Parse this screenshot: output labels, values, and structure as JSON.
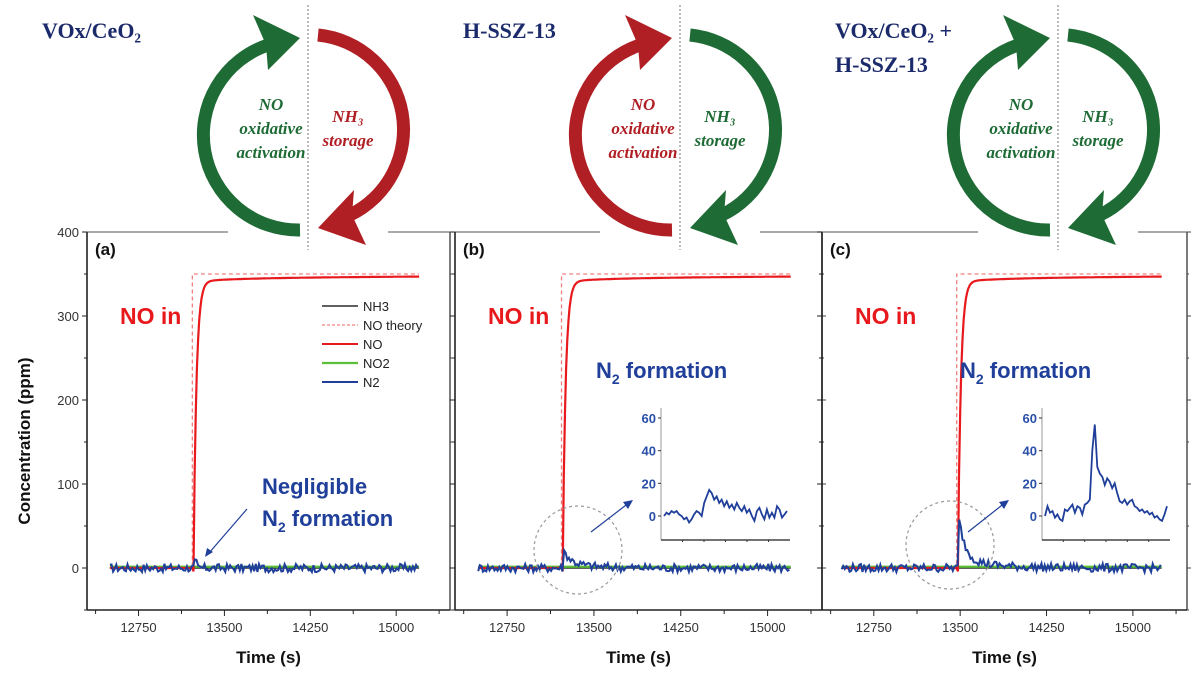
{
  "colors": {
    "green": "#1e6b35",
    "red": "#b01f24",
    "navy": "#1b2a6b",
    "no_line": "#e8191c",
    "no_theory": "#f08080",
    "nh3": "#000000",
    "no2": "#5bbf3a",
    "n2": "#1f3f9a"
  },
  "chart_data": [
    {
      "panel": "a",
      "type": "line",
      "catalyst": "VOx/CeO2",
      "catalyst_lines": [
        "VOx/CeO₂"
      ],
      "cycle": {
        "left_label": [
          "NO",
          "oxidative",
          "activation"
        ],
        "right_label": [
          "NH₃",
          "storage"
        ],
        "left_color": "green",
        "right_color": "red"
      },
      "panel_label": "(a)",
      "annotation_no": "NO in",
      "annotation_n2": [
        "Negligible",
        "N₂ formation"
      ],
      "xlabel": "Time (s)",
      "ylabel": "Concentration (ppm)",
      "xlim": [
        12300,
        15470
      ],
      "ylim": [
        -50,
        400
      ],
      "xticks": [
        12750,
        13500,
        14250,
        15000
      ],
      "yticks": [
        0,
        100,
        200,
        300,
        400
      ],
      "legend": [
        "NH3",
        "NO  theory",
        "NO",
        "NO2",
        "N2"
      ],
      "legend_placement": "upper-right",
      "step_time": 13230,
      "x_start": 12500,
      "x_end": 15200,
      "no_plateau": 345,
      "no_theory": 350,
      "n2_peak": 6,
      "inset": null
    },
    {
      "panel": "b",
      "type": "line",
      "catalyst": "H-SSZ-13",
      "catalyst_lines": [
        "H-SSZ-13"
      ],
      "cycle": {
        "left_label": [
          "NO",
          "oxidative",
          "activation"
        ],
        "right_label": [
          "NH₃",
          "storage"
        ],
        "left_color": "red",
        "right_color": "green"
      },
      "panel_label": "(b)",
      "annotation_no": "NO in",
      "annotation_n2": [
        "N₂ formation"
      ],
      "xlabel": "Time (s)",
      "xlim": [
        12300,
        15470
      ],
      "ylim": [
        -50,
        400
      ],
      "xticks": [
        12750,
        13500,
        14250,
        15000
      ],
      "yticks": [
        0,
        100,
        200,
        300,
        400
      ],
      "step_time": 13230,
      "x_start": 12500,
      "x_end": 15200,
      "no_plateau": 345,
      "no_theory": 350,
      "n2_peak": 16,
      "inset": {
        "ylim": [
          -10,
          65
        ],
        "yticks": [
          0,
          20,
          40,
          60
        ],
        "values": [
          0,
          2,
          1,
          3,
          2,
          3,
          1,
          0,
          -2,
          -1,
          -4,
          -2,
          1,
          3,
          2,
          0,
          8,
          12,
          16,
          14,
          10,
          12,
          8,
          10,
          6,
          9,
          5,
          7,
          4,
          8,
          5,
          3,
          6,
          2,
          4,
          0,
          -3,
          3,
          5,
          1,
          -2,
          4,
          -1,
          2,
          -1,
          6,
          4,
          -1,
          1,
          3
        ]
      }
    },
    {
      "panel": "c",
      "type": "line",
      "catalyst": "VOx/CeO2 + H-SSZ-13",
      "catalyst_lines": [
        "VOx/CeO₂ +",
        "H-SSZ-13"
      ],
      "cycle": {
        "left_label": [
          "NO",
          "oxidative",
          "activation"
        ],
        "right_label": [
          "NH₃",
          "storage"
        ],
        "left_color": "green",
        "right_color": "green"
      },
      "panel_label": "(c)",
      "annotation_no": "NO in",
      "annotation_n2": [
        "N₂ formation"
      ],
      "xlabel": "Time (s)",
      "xlim": [
        12300,
        15470
      ],
      "ylim": [
        -50,
        400
      ],
      "xticks": [
        12750,
        13500,
        14250,
        15000
      ],
      "yticks": [
        0,
        100,
        200,
        300,
        400
      ],
      "step_time": 13480,
      "x_start": 12470,
      "x_end": 15250,
      "no_plateau": 345,
      "no_theory": 350,
      "n2_peak": 56,
      "inset": {
        "ylim": [
          -10,
          65
        ],
        "yticks": [
          0,
          20,
          40,
          60
        ],
        "values": [
          0,
          6,
          2,
          3,
          -1,
          1,
          -2,
          -3,
          4,
          3,
          5,
          7,
          2,
          6,
          5,
          1,
          7,
          8,
          10,
          40,
          56,
          30,
          26,
          24,
          19,
          23,
          21,
          17,
          20,
          14,
          9,
          8,
          10,
          7,
          9,
          10,
          6,
          5,
          3,
          4,
          2,
          3,
          1,
          2,
          -1,
          0,
          -2,
          -3,
          1,
          6
        ]
      }
    }
  ]
}
